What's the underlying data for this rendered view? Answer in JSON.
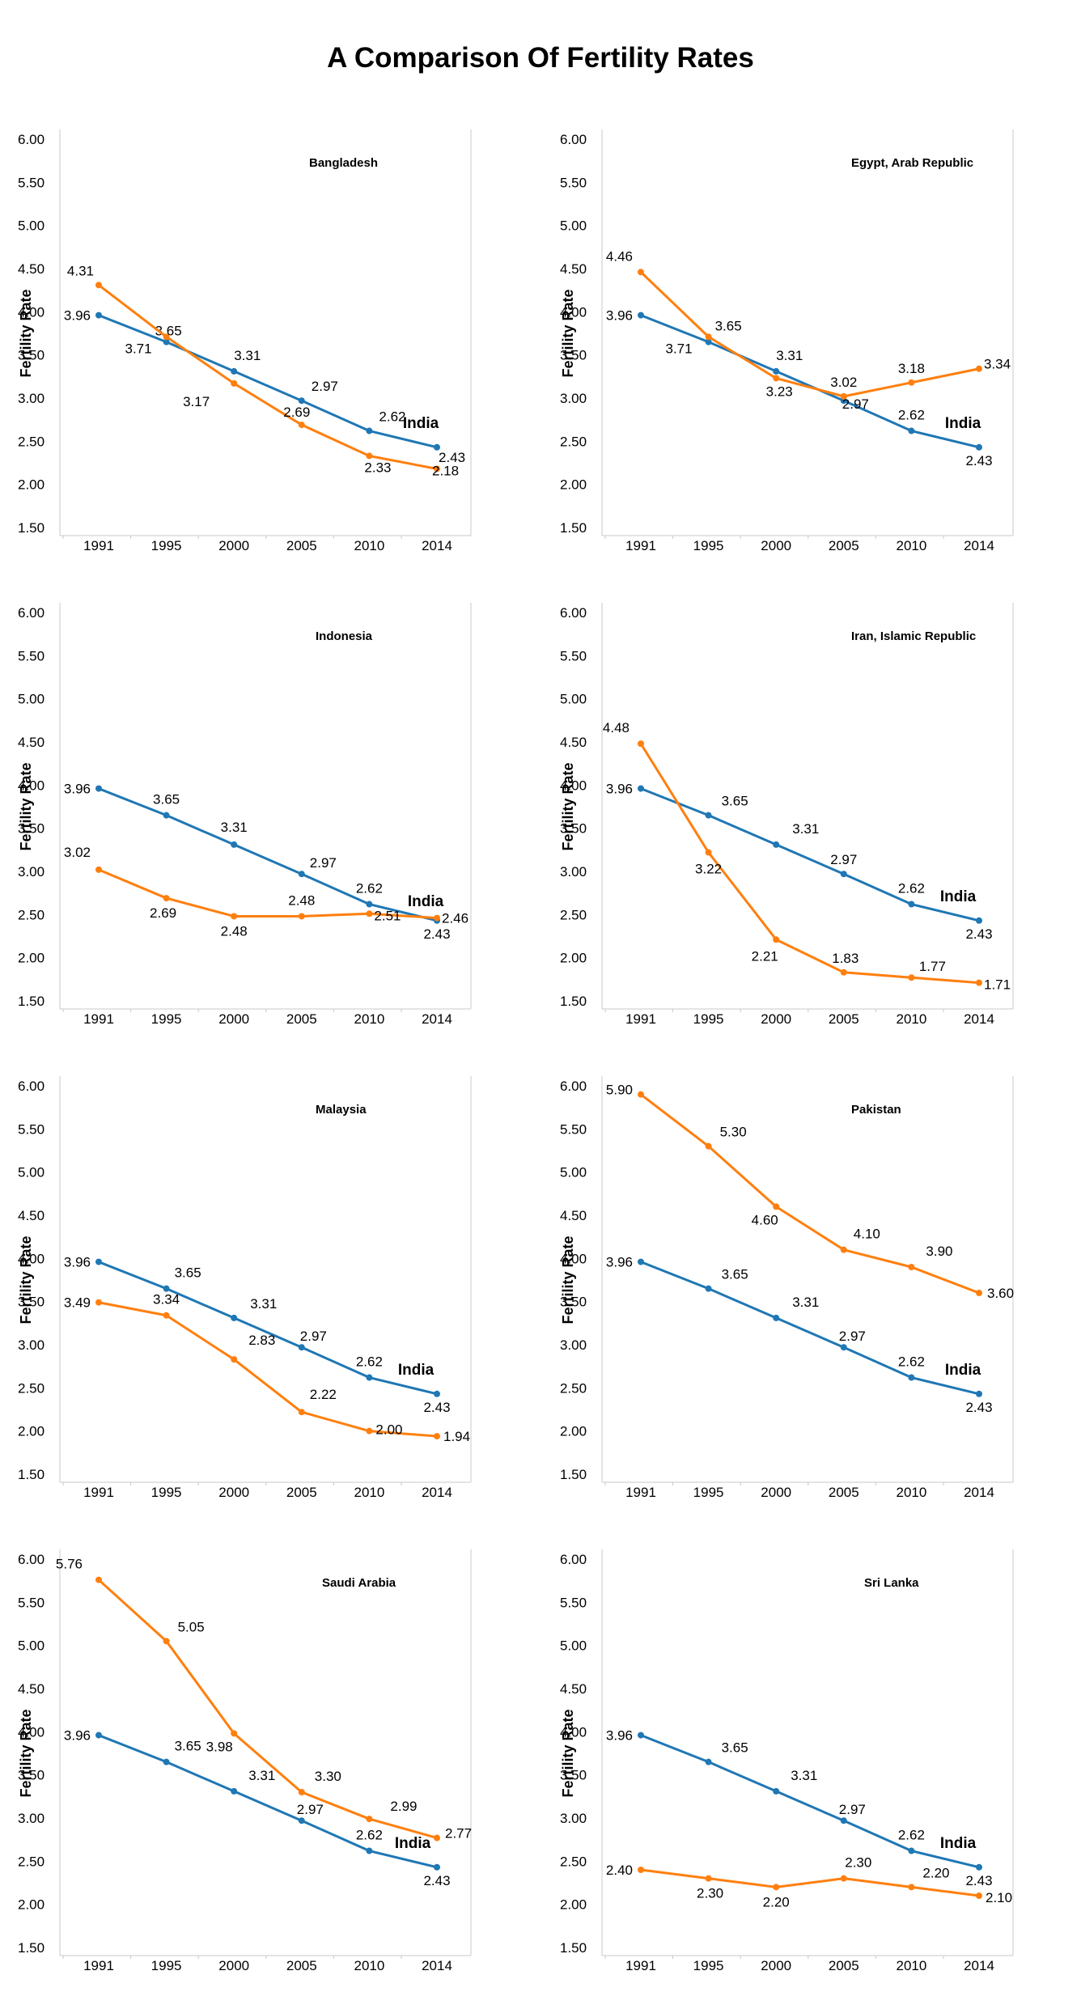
{
  "title": "A Comparison Of Fertility Rates",
  "colors": {
    "india": "#1f77b4",
    "country": "#ff7f0e",
    "axis": "#c8c8c8"
  },
  "chart_data": [
    {
      "type": "line",
      "country_label": "Bangladesh",
      "x": [
        "1991",
        "1995",
        "2000",
        "2005",
        "2010",
        "2014"
      ],
      "ylabel": "Fertility Rate",
      "yticks": [
        "6.00",
        "5.50",
        "5.00",
        "4.50",
        "4.00",
        "3.50",
        "3.00",
        "2.50",
        "2.00",
        "1.50"
      ],
      "ylim": [
        1.5,
        6.0
      ],
      "series": [
        {
          "name": "India",
          "values": [
            3.96,
            3.65,
            3.31,
            2.97,
            2.62,
            2.43
          ],
          "labels": [
            "3.96",
            "3.65",
            "3.31",
            "2.97",
            "2.62",
            "2.43"
          ]
        },
        {
          "values": [
            4.31,
            3.71,
            3.17,
            2.69,
            2.33,
            2.18
          ],
          "labels": [
            "4.31",
            "3.71",
            "3.17",
            "2.69",
            "2.33",
            "2.18"
          ]
        }
      ]
    },
    {
      "type": "line",
      "country_label": "Egypt, Arab Republic",
      "x": [
        "1991",
        "1995",
        "2000",
        "2005",
        "2010",
        "2014"
      ],
      "ylabel": "Fertility Rate",
      "yticks": [
        "6.00",
        "5.50",
        "5.00",
        "4.50",
        "4.00",
        "3.50",
        "3.00",
        "2.50",
        "2.00",
        "1.50"
      ],
      "ylim": [
        1.5,
        6.0
      ],
      "series": [
        {
          "name": "India",
          "values": [
            3.96,
            3.65,
            3.31,
            2.97,
            2.62,
            2.43
          ],
          "labels": [
            "3.96",
            "3.65",
            "3.31",
            "2.97",
            "2.62",
            "2.43"
          ]
        },
        {
          "values": [
            4.46,
            3.71,
            3.23,
            3.02,
            3.18,
            3.34
          ],
          "labels": [
            "4.46",
            "3.71",
            "3.23",
            "3.02",
            "3.18",
            "3.34"
          ]
        }
      ]
    },
    {
      "type": "line",
      "country_label": "Indonesia",
      "x": [
        "1991",
        "1995",
        "2000",
        "2005",
        "2010",
        "2014"
      ],
      "ylabel": "Fertility Rate",
      "yticks": [
        "6.00",
        "5.50",
        "5.00",
        "4.50",
        "4.00",
        "3.50",
        "3.00",
        "2.50",
        "2.00",
        "1.50"
      ],
      "ylim": [
        1.5,
        6.0
      ],
      "series": [
        {
          "name": "India",
          "values": [
            3.96,
            3.65,
            3.31,
            2.97,
            2.62,
            2.43
          ],
          "labels": [
            "3.96",
            "3.65",
            "3.31",
            "2.97",
            "2.62",
            "2.43"
          ]
        },
        {
          "values": [
            3.02,
            2.69,
            2.48,
            2.48,
            2.51,
            2.46
          ],
          "labels": [
            "3.02",
            "2.69",
            "2.48",
            "2.48",
            "2.51",
            "2.46"
          ]
        }
      ]
    },
    {
      "type": "line",
      "country_label": "Iran, Islamic Republic",
      "x": [
        "1991",
        "1995",
        "2000",
        "2005",
        "2010",
        "2014"
      ],
      "ylabel": "Fertility Rate",
      "yticks": [
        "6.00",
        "5.50",
        "5.00",
        "4.50",
        "4.00",
        "3.50",
        "3.00",
        "2.50",
        "2.00",
        "1.50"
      ],
      "ylim": [
        1.5,
        6.0
      ],
      "series": [
        {
          "name": "India",
          "values": [
            3.96,
            3.65,
            3.31,
            2.97,
            2.62,
            2.43
          ],
          "labels": [
            "3.96",
            "3.65",
            "3.31",
            "2.97",
            "2.62",
            "2.43"
          ]
        },
        {
          "values": [
            4.48,
            3.22,
            2.21,
            1.83,
            1.77,
            1.71
          ],
          "labels": [
            "4.48",
            "3.22",
            "2.21",
            "1.83",
            "1.77",
            "1.71"
          ]
        }
      ]
    },
    {
      "type": "line",
      "country_label": "Malaysia",
      "x": [
        "1991",
        "1995",
        "2000",
        "2005",
        "2010",
        "2014"
      ],
      "ylabel": "Fertility Rate",
      "yticks": [
        "6.00",
        "5.50",
        "5.00",
        "4.50",
        "4.00",
        "3.50",
        "3.00",
        "2.50",
        "2.00",
        "1.50"
      ],
      "ylim": [
        1.5,
        6.0
      ],
      "series": [
        {
          "name": "India",
          "values": [
            3.96,
            3.65,
            3.31,
            2.97,
            2.62,
            2.43
          ],
          "labels": [
            "3.96",
            "3.65",
            "3.31",
            "2.97",
            "2.62",
            "2.43"
          ]
        },
        {
          "values": [
            3.49,
            3.34,
            2.83,
            2.22,
            2.0,
            1.94
          ],
          "labels": [
            "3.49",
            "3.34",
            "2.83",
            "2.22",
            "2.00",
            "1.94"
          ]
        }
      ]
    },
    {
      "type": "line",
      "country_label": "Pakistan",
      "x": [
        "1991",
        "1995",
        "2000",
        "2005",
        "2010",
        "2014"
      ],
      "ylabel": "Fertility Rate",
      "yticks": [
        "6.00",
        "5.50",
        "5.00",
        "4.50",
        "4.00",
        "3.50",
        "3.00",
        "2.50",
        "2.00",
        "1.50"
      ],
      "ylim": [
        1.5,
        6.0
      ],
      "series": [
        {
          "name": "India",
          "values": [
            3.96,
            3.65,
            3.31,
            2.97,
            2.62,
            2.43
          ],
          "labels": [
            "3.96",
            "3.65",
            "3.31",
            "2.97",
            "2.62",
            "2.43"
          ]
        },
        {
          "values": [
            5.9,
            5.3,
            4.6,
            4.1,
            3.9,
            3.6
          ],
          "labels": [
            "5.90",
            "5.30",
            "4.60",
            "4.10",
            "3.90",
            "3.60"
          ]
        }
      ]
    },
    {
      "type": "line",
      "country_label": "Saudi Arabia",
      "x": [
        "1991",
        "1995",
        "2000",
        "2005",
        "2010",
        "2014"
      ],
      "ylabel": "Fertility Rate",
      "yticks": [
        "6.00",
        "5.50",
        "5.00",
        "4.50",
        "4.00",
        "3.50",
        "3.00",
        "2.50",
        "2.00",
        "1.50"
      ],
      "ylim": [
        1.5,
        6.0
      ],
      "series": [
        {
          "name": "India",
          "values": [
            3.96,
            3.65,
            3.31,
            2.97,
            2.62,
            2.43
          ],
          "labels": [
            "3.96",
            "3.65",
            "3.31",
            "2.97",
            "2.62",
            "2.43"
          ]
        },
        {
          "values": [
            5.76,
            5.05,
            3.98,
            3.3,
            2.99,
            2.77
          ],
          "labels": [
            "5.76",
            "5.05",
            "3.98",
            "3.30",
            "2.99",
            "2.77"
          ]
        }
      ]
    },
    {
      "type": "line",
      "country_label": "Sri Lanka",
      "x": [
        "1991",
        "1995",
        "2000",
        "2005",
        "2010",
        "2014"
      ],
      "ylabel": "Fertility Rate",
      "yticks": [
        "6.00",
        "5.50",
        "5.00",
        "4.50",
        "4.00",
        "3.50",
        "3.00",
        "2.50",
        "2.00",
        "1.50"
      ],
      "ylim": [
        1.5,
        6.0
      ],
      "series": [
        {
          "name": "India",
          "values": [
            3.96,
            3.65,
            3.31,
            2.97,
            2.62,
            2.43
          ],
          "labels": [
            "3.96",
            "3.65",
            "3.31",
            "2.97",
            "2.62",
            "2.43"
          ]
        },
        {
          "values": [
            2.4,
            2.3,
            2.2,
            2.3,
            2.2,
            2.1
          ],
          "labels": [
            "2.40",
            "2.30",
            "2.20",
            "2.30",
            "2.20",
            "2.10"
          ]
        }
      ]
    }
  ]
}
